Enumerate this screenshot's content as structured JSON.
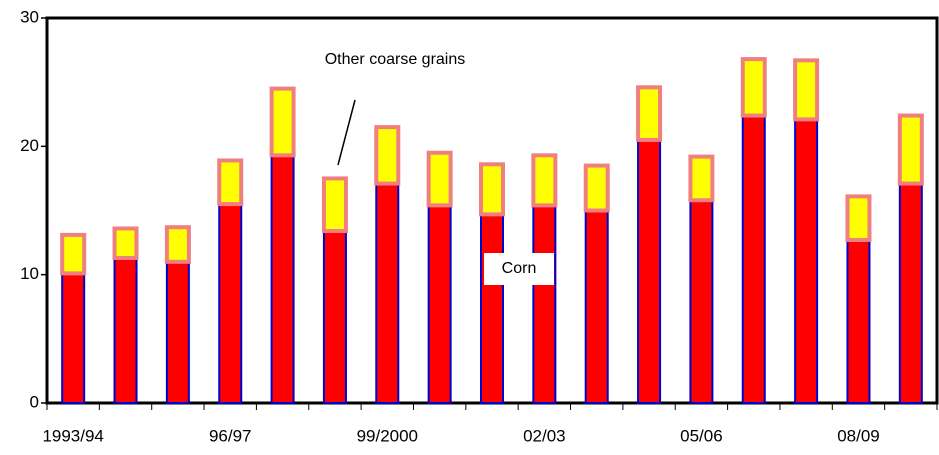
{
  "chart_data": {
    "type": "stacked_bar",
    "categories": [
      "1993/94",
      null,
      null,
      "96/97",
      null,
      null,
      "99/2000",
      null,
      null,
      "02/03",
      null,
      null,
      "05/06",
      null,
      null,
      "08/09",
      null
    ],
    "series": [
      {
        "name": "Corn",
        "color": "#ff0000",
        "values": [
          10.1,
          11.3,
          11.0,
          15.5,
          19.3,
          13.4,
          17.1,
          15.4,
          14.7,
          15.4,
          15.0,
          20.5,
          15.8,
          22.4,
          22.1,
          12.7,
          17.1
        ]
      },
      {
        "name": "Other coarse grains",
        "color": "#ffff00",
        "values": [
          3.0,
          2.3,
          2.7,
          3.4,
          5.2,
          4.1,
          4.4,
          4.1,
          3.9,
          3.9,
          3.5,
          4.1,
          3.4,
          4.4,
          4.6,
          3.4,
          5.3
        ]
      }
    ],
    "ylim": [
      0,
      30
    ],
    "yticks": [
      0,
      10,
      20,
      30
    ]
  }
}
